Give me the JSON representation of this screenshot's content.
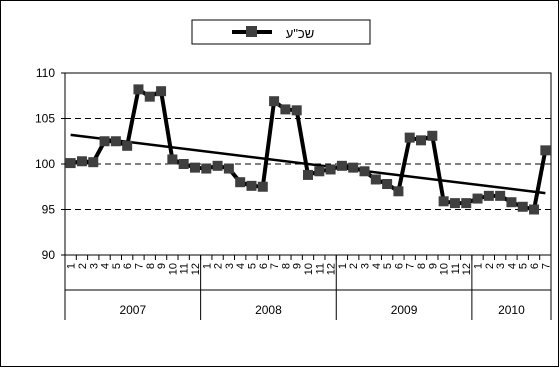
{
  "chart_data": {
    "type": "line",
    "legend": {
      "label": "שכ\"ע",
      "placement": "top-center",
      "marker": "square"
    },
    "ylim": [
      90,
      110
    ],
    "yticks": [
      90,
      95,
      100,
      105,
      110
    ],
    "grid": "dashed-horizontal",
    "month_labels": [
      "1",
      "2",
      "3",
      "4",
      "5",
      "6",
      "7",
      "8",
      "9",
      "10",
      "11",
      "12"
    ],
    "years": [
      {
        "label": "2007",
        "months": 12
      },
      {
        "label": "2008",
        "months": 12
      },
      {
        "label": "2009",
        "months": 12
      },
      {
        "label": "2010",
        "months": 7
      }
    ],
    "series": [
      {
        "name": "שכ\"ע",
        "color": "#3f3f3f",
        "values": [
          100.1,
          100.3,
          100.2,
          102.5,
          102.5,
          102.0,
          108.2,
          107.4,
          108.0,
          100.5,
          100.0,
          99.6,
          99.5,
          99.8,
          99.5,
          98.0,
          97.6,
          97.5,
          106.9,
          106.0,
          105.9,
          98.8,
          99.2,
          99.4,
          99.8,
          99.6,
          99.2,
          98.3,
          97.8,
          97.0,
          102.9,
          102.6,
          103.1,
          95.9,
          95.7,
          95.7,
          96.2,
          96.5,
          96.5,
          95.8,
          95.3,
          95.0,
          101.5
        ]
      }
    ],
    "trendline": {
      "start": 103.2,
      "end": 96.8,
      "color": "#000000"
    }
  }
}
